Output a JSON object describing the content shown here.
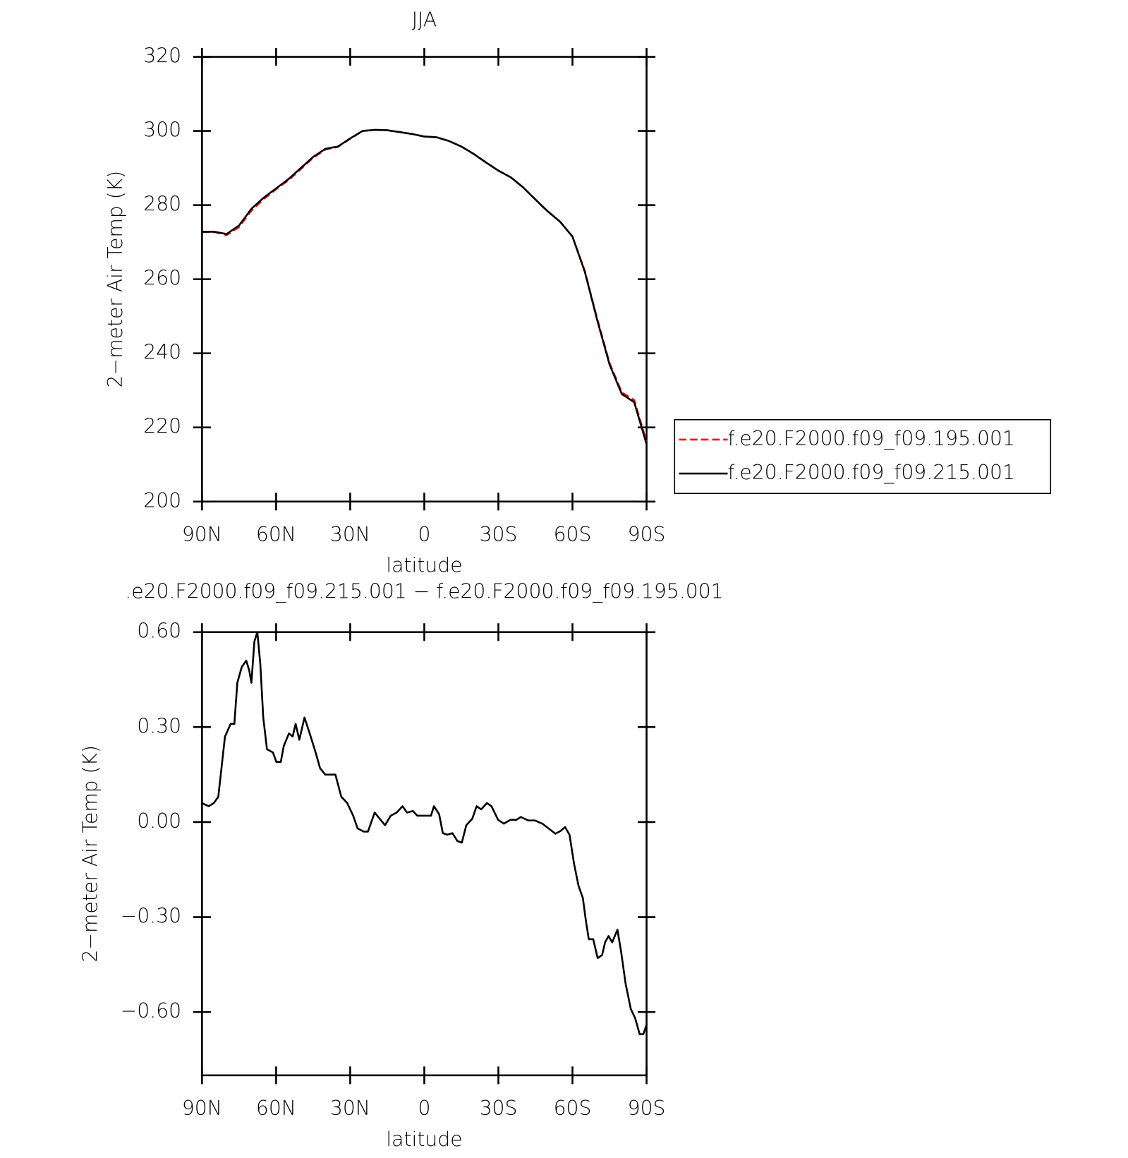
{
  "chart_data": [
    {
      "type": "line",
      "title": "JJA",
      "x_label": "latitude",
      "y_label": "2−meter Air Temp (K)",
      "xlim": [
        90,
        -90
      ],
      "ylim": [
        200,
        320
      ],
      "xticks": [
        {
          "value": 90,
          "label": "90N"
        },
        {
          "value": 60,
          "label": "60N"
        },
        {
          "value": 30,
          "label": "30N"
        },
        0,
        {
          "value": -30,
          "label": "30S"
        },
        {
          "value": -60,
          "label": "60S"
        },
        {
          "value": -90,
          "label": "90S"
        }
      ],
      "yticks": [
        200,
        220,
        240,
        260,
        280,
        300,
        320
      ],
      "legend": "outside-right",
      "x": [
        90,
        85,
        80,
        75,
        70,
        65,
        60,
        55,
        50,
        45,
        40,
        35,
        30,
        25,
        20,
        15,
        10,
        5,
        0,
        -5,
        -10,
        -15,
        -20,
        -25,
        -30,
        -35,
        -40,
        -45,
        -50,
        -55,
        -60,
        -65,
        -70,
        -75,
        -80,
        -85,
        -90
      ],
      "series": [
        {
          "name": "f.e20.F2000.f09_f09.195.001",
          "color": "#ff0000",
          "dashed": true,
          "values": [
            272.74,
            272.75,
            271.9,
            274.1,
            278.5,
            281.6,
            284.3,
            286.7,
            289.7,
            292.8,
            295.0,
            295.7,
            297.9,
            300.0,
            300.3,
            300.2,
            299.7,
            299.2,
            298.5,
            298.3,
            297.3,
            295.8,
            293.8,
            291.5,
            289.3,
            287.5,
            284.8,
            281.5,
            278.3,
            275.5,
            271.5,
            262.2,
            249.4,
            237.4,
            229.4,
            227.4,
            216.1
          ]
        },
        {
          "name": "f.e20.F2000.f09_f09.215.001",
          "color": "#000000",
          "dashed": false,
          "values": [
            272.8,
            272.8,
            272.2,
            274.5,
            279,
            282,
            284.5,
            287,
            290,
            293,
            295.2,
            295.8,
            298,
            300,
            300.3,
            300.2,
            299.7,
            299.2,
            298.5,
            298.3,
            297.3,
            295.8,
            293.8,
            291.5,
            289.3,
            287.5,
            284.8,
            281.5,
            278.3,
            275.5,
            271.5,
            262,
            249,
            237,
            229,
            226.8,
            215.5
          ]
        }
      ]
    },
    {
      "type": "line",
      "title": ".e20.F2000.f09_f09.215.001 − f.e20.F2000.f09_f09.195.001",
      "x_label": "latitude",
      "y_label": "2−meter Air Temp (K)",
      "xlim": [
        90,
        -90
      ],
      "ylim": [
        -0.8,
        0.6
      ],
      "xticks": [
        {
          "value": 90,
          "label": "90N"
        },
        {
          "value": 60,
          "label": "60N"
        },
        {
          "value": 30,
          "label": "30N"
        },
        0,
        {
          "value": -30,
          "label": "30S"
        },
        {
          "value": -60,
          "label": "60S"
        },
        {
          "value": -90,
          "label": "90S"
        }
      ],
      "yticks": [
        {
          "value": -0.6,
          "label": "−0.60"
        },
        {
          "value": -0.3,
          "label": "−0.30"
        },
        {
          "value": 0,
          "label": "0.00"
        },
        {
          "value": 0.3,
          "label": "0.30"
        },
        {
          "value": 0.6,
          "label": "0.60"
        }
      ],
      "x": [
        90,
        87.3,
        85.2,
        83.4,
        80.7,
        78.4,
        76.9,
        75.7,
        73.9,
        72.1,
        70.9,
        70,
        68.8,
        67.6,
        66.4,
        65.2,
        63.7,
        61.3,
        59.9,
        58.1,
        56.9,
        54.8,
        53.3,
        52.1,
        50.6,
        48.5,
        46.4,
        44,
        42.2,
        40.1,
        37.7,
        36,
        33.6,
        31.2,
        28.8,
        27,
        24.6,
        22.8,
        20.1,
        18,
        15.9,
        13.6,
        11.2,
        8.8,
        7,
        4.6,
        2.8,
        0,
        -2.7,
        -3.9,
        -6,
        -7.5,
        -9.3,
        -11.4,
        -13.4,
        -15.2,
        -17,
        -19.4,
        -21.2,
        -23,
        -25.4,
        -27.2,
        -29.9,
        -32.2,
        -34.9,
        -37.3,
        -39.1,
        -42.1,
        -44.8,
        -47.8,
        -50.8,
        -53.1,
        -55.2,
        -57,
        -58.8,
        -60.6,
        -62.4,
        -64.2,
        -65.4,
        -66.6,
        -68.4,
        -70.2,
        -72,
        -73.2,
        -74.6,
        -76.1,
        -78.2,
        -79.7,
        -81.5,
        -83.6,
        -85.4,
        -87.2,
        -88.7,
        -90
      ],
      "series": [
        {
          "color": "#000000",
          "dashed": false,
          "values": [
            0.06,
            0.05,
            0.06,
            0.08,
            0.27,
            0.31,
            0.31,
            0.44,
            0.49,
            0.51,
            0.48,
            0.44,
            0.57,
            0.6,
            0.5,
            0.33,
            0.23,
            0.22,
            0.19,
            0.19,
            0.24,
            0.28,
            0.27,
            0.31,
            0.26,
            0.33,
            0.28,
            0.22,
            0.17,
            0.15,
            0.15,
            0.15,
            0.08,
            0.06,
            0.02,
            -0.02,
            -0.03,
            -0.03,
            0.03,
            0.01,
            -0.01,
            0.02,
            0.03,
            0.05,
            0.03,
            0.035,
            0.02,
            0.02,
            0.02,
            0.05,
            0.025,
            -0.035,
            -0.04,
            -0.035,
            -0.06,
            -0.065,
            -0.01,
            0.01,
            0.05,
            0.04,
            0.06,
            0.05,
            0.007,
            -0.005,
            0.007,
            0.007,
            0.016,
            0.005,
            0.005,
            -0.005,
            -0.023,
            -0.037,
            -0.028,
            -0.016,
            -0.04,
            -0.13,
            -0.2,
            -0.24,
            -0.31,
            -0.37,
            -0.37,
            -0.43,
            -0.42,
            -0.38,
            -0.36,
            -0.38,
            -0.34,
            -0.41,
            -0.51,
            -0.59,
            -0.62,
            -0.67,
            -0.67,
            -0.64
          ]
        }
      ]
    }
  ]
}
